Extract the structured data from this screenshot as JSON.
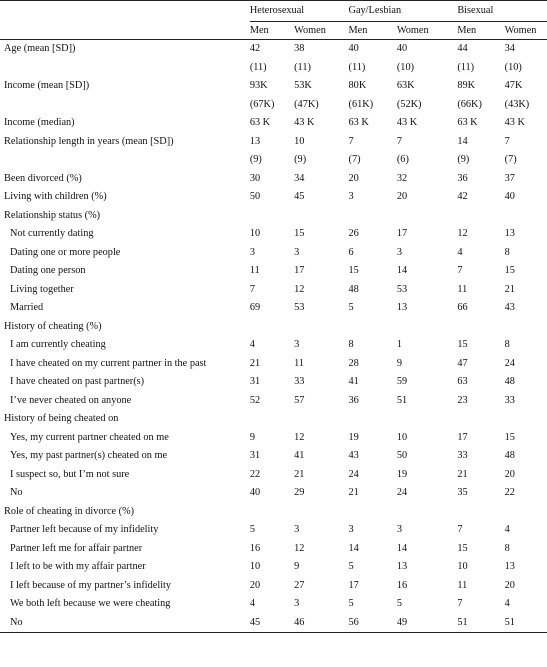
{
  "header": {
    "groups": [
      "Heterosexual",
      "Gay/Lesbian",
      "Bisexual"
    ],
    "subgroups": [
      "Men",
      "Women",
      "Men",
      "Women",
      "Men",
      "Women"
    ]
  },
  "rows": [
    {
      "label": "Age (mean [SD])",
      "indent": false,
      "values": [
        "42",
        "38",
        "40",
        "40",
        "44",
        "34"
      ]
    },
    {
      "label": "",
      "indent": false,
      "values": [
        "(11)",
        "(11)",
        "(11)",
        "(10)",
        "(11)",
        "(10)"
      ]
    },
    {
      "label": "Income (mean [SD])",
      "indent": false,
      "values": [
        "93K",
        "53K",
        "80K",
        "63K",
        "89K",
        "47K"
      ]
    },
    {
      "label": "",
      "indent": false,
      "values": [
        "(67K)",
        "(47K)",
        "(61K)",
        "(52K)",
        "(66K)",
        "(43K)"
      ]
    },
    {
      "label": "Income (median)",
      "indent": false,
      "values": [
        "63 K",
        "43 K",
        "63 K",
        "43 K",
        "63 K",
        "43 K"
      ]
    },
    {
      "label": "Relationship length in years (mean [SD])",
      "indent": false,
      "values": [
        "13",
        "10",
        "7",
        "7",
        "14",
        "7"
      ]
    },
    {
      "label": "",
      "indent": false,
      "values": [
        "(9)",
        "(9)",
        "(7)",
        "(6)",
        "(9)",
        "(7)"
      ]
    },
    {
      "label": "Been divorced (%)",
      "indent": false,
      "values": [
        "30",
        "34",
        "20",
        "32",
        "36",
        "37"
      ]
    },
    {
      "label": "Living with children (%)",
      "indent": false,
      "values": [
        "50",
        "45",
        "3",
        "20",
        "42",
        "40"
      ]
    },
    {
      "label": "Relationship status (%)",
      "indent": false,
      "values": [
        "",
        "",
        "",
        "",
        "",
        ""
      ]
    },
    {
      "label": "Not currently dating",
      "indent": true,
      "values": [
        "10",
        "15",
        "26",
        "17",
        "12",
        "13"
      ]
    },
    {
      "label": "Dating one or more people",
      "indent": true,
      "values": [
        "3",
        "3",
        "6",
        "3",
        "4",
        "8"
      ]
    },
    {
      "label": "Dating one person",
      "indent": true,
      "values": [
        "11",
        "17",
        "15",
        "14",
        "7",
        "15"
      ]
    },
    {
      "label": "Living together",
      "indent": true,
      "values": [
        "7",
        "12",
        "48",
        "53",
        "11",
        "21"
      ]
    },
    {
      "label": "Married",
      "indent": true,
      "values": [
        "69",
        "53",
        "5",
        "13",
        "66",
        "43"
      ]
    },
    {
      "label": "History of cheating (%)",
      "indent": false,
      "values": [
        "",
        "",
        "",
        "",
        "",
        ""
      ]
    },
    {
      "label": "I am currently cheating",
      "indent": true,
      "values": [
        "4",
        "3",
        "8",
        "1",
        "15",
        "8"
      ]
    },
    {
      "label": "I have cheated on my current partner in the past",
      "indent": true,
      "values": [
        "21",
        "11",
        "28",
        "9",
        "47",
        "24"
      ]
    },
    {
      "label": "I have cheated on past partner(s)",
      "indent": true,
      "values": [
        "31",
        "33",
        "41",
        "59",
        "63",
        "48"
      ]
    },
    {
      "label": "I’ve never cheated on anyone",
      "indent": true,
      "values": [
        "52",
        "57",
        "36",
        "51",
        "23",
        "33"
      ]
    },
    {
      "label": "History of being cheated on",
      "indent": false,
      "values": [
        "",
        "",
        "",
        "",
        "",
        ""
      ]
    },
    {
      "label": "Yes, my current partner cheated on me",
      "indent": true,
      "values": [
        "9",
        "12",
        "19",
        "10",
        "17",
        "15"
      ]
    },
    {
      "label": "Yes, my past partner(s) cheated on me",
      "indent": true,
      "values": [
        "31",
        "41",
        "43",
        "50",
        "33",
        "48"
      ]
    },
    {
      "label": "I suspect so, but I’m not sure",
      "indent": true,
      "values": [
        "22",
        "21",
        "24",
        "19",
        "21",
        "20"
      ]
    },
    {
      "label": "No",
      "indent": true,
      "values": [
        "40",
        "29",
        "21",
        "24",
        "35",
        "22"
      ]
    },
    {
      "label": "Role of cheating in divorce (%)",
      "indent": false,
      "values": [
        "",
        "",
        "",
        "",
        "",
        ""
      ]
    },
    {
      "label": "Partner left because of my infidelity",
      "indent": true,
      "values": [
        "5",
        "3",
        "3",
        "3",
        "7",
        "4"
      ]
    },
    {
      "label": "Partner left me for affair partner",
      "indent": true,
      "values": [
        "16",
        "12",
        "14",
        "14",
        "15",
        "8"
      ]
    },
    {
      "label": "I left to be with my affair partner",
      "indent": true,
      "values": [
        "10",
        "9",
        "5",
        "13",
        "10",
        "13"
      ]
    },
    {
      "label": "I left because of my partner’s infidelity",
      "indent": true,
      "values": [
        "20",
        "27",
        "17",
        "16",
        "11",
        "20"
      ]
    },
    {
      "label": "We both left because we were cheating",
      "indent": true,
      "values": [
        "4",
        "3",
        "5",
        "5",
        "7",
        "4"
      ]
    },
    {
      "label": "No",
      "indent": true,
      "values": [
        "45",
        "46",
        "56",
        "49",
        "51",
        "51"
      ]
    }
  ]
}
